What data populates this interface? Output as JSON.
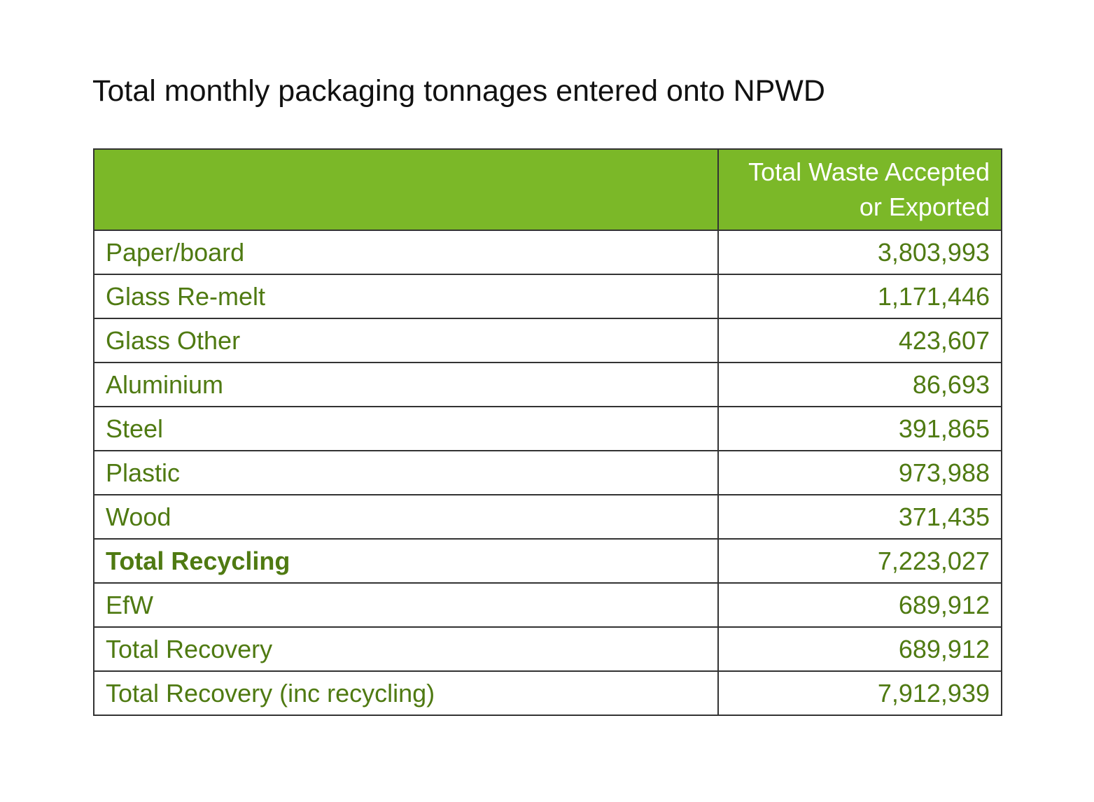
{
  "title": "Total monthly packaging tonnages entered onto NPWD",
  "table": {
    "headers": [
      "",
      "Total Waste Accepted or Exported"
    ],
    "rows": [
      {
        "label": "Paper/board",
        "value": "3,803,993"
      },
      {
        "label": "Glass Re-melt",
        "value": "1,171,446"
      },
      {
        "label": "Glass Other",
        "value": "423,607"
      },
      {
        "label": "Aluminium",
        "value": "86,693"
      },
      {
        "label": "Steel",
        "value": "391,865"
      },
      {
        "label": "Plastic",
        "value": "973,988"
      },
      {
        "label": "Wood",
        "value": "371,435"
      },
      {
        "label": "Total Recycling",
        "value": "7,223,027"
      },
      {
        "label": "EfW",
        "value": "689,912"
      },
      {
        "label": "Total Recovery",
        "value": "689,912"
      },
      {
        "label": "Total Recovery (inc recycling)",
        "value": "7,912,939"
      }
    ]
  },
  "colors": {
    "header_background": "#7bb828",
    "header_text": "#ffffff",
    "body_text": "#4f7a12",
    "title_text": "#111111",
    "border": "#333333"
  }
}
